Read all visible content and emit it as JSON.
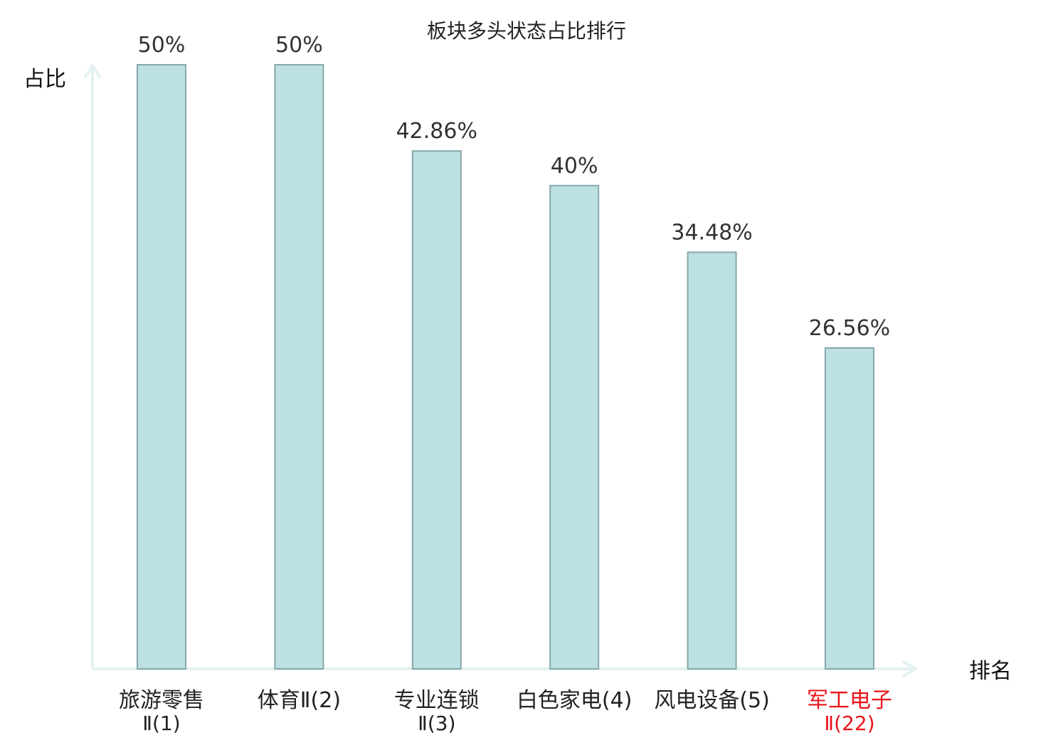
{
  "chart_data": {
    "type": "bar",
    "title": "板块多头状态占比排行",
    "ylabel": "占比",
    "xlabel": "排名",
    "ylim": [
      0,
      50
    ],
    "grid": false,
    "legend": "none",
    "colors": {
      "bar_fill": "#bde1e3",
      "bar_stroke": "#86a8aa",
      "axis": "#e2f2f0",
      "label_default": "#222222",
      "label_highlight": "#e8141b"
    },
    "categories": [
      {
        "name": "旅游零售",
        "sub": "Ⅱ(1)",
        "value": 50,
        "label": "50%",
        "highlight": false
      },
      {
        "name": "体育Ⅱ(2)",
        "sub": "",
        "value": 50,
        "label": "50%",
        "highlight": false
      },
      {
        "name": "专业连锁",
        "sub": "Ⅱ(3)",
        "value": 42.86,
        "label": "42.86%",
        "highlight": false
      },
      {
        "name": "白色家电(4)",
        "sub": "",
        "value": 40,
        "label": "40%",
        "highlight": false
      },
      {
        "name": "风电设备(5)",
        "sub": "",
        "value": 34.48,
        "label": "34.48%",
        "highlight": false
      },
      {
        "name": "军工电子",
        "sub": "Ⅱ(22)",
        "value": 26.56,
        "label": "26.56%",
        "highlight": true
      }
    ]
  }
}
